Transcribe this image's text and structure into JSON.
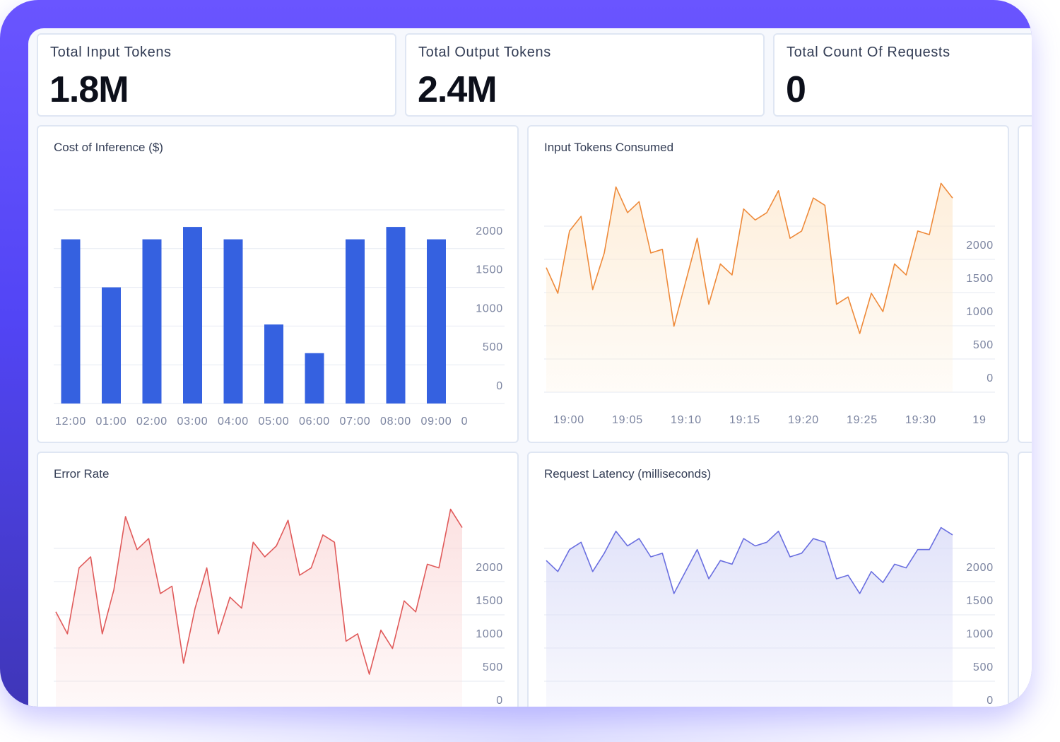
{
  "stats": [
    {
      "label": "Total Input Tokens",
      "value": "1.8M"
    },
    {
      "label": "Total Output Tokens",
      "value": "2.4M"
    },
    {
      "label": "Total Count Of Requests",
      "value": "0"
    }
  ],
  "colors": {
    "frame": "#5b4cff",
    "bar": "#3561e0",
    "orange": "#ee8a3a",
    "red": "#e05a5a",
    "purple": "#6a6fe0",
    "grid": "#e6eaf2",
    "tick": "#7b84a0"
  },
  "chart_data": [
    {
      "type": "bar",
      "title": "Cost of Inference ($)",
      "categories": [
        "12:00",
        "01:00",
        "02:00",
        "03:00",
        "04:00",
        "05:00",
        "06:00",
        "07:00",
        "08:00",
        "09:00"
      ],
      "values": [
        2120,
        1500,
        2120,
        2280,
        2120,
        1020,
        650,
        2120,
        2280,
        2120
      ],
      "x_tick_labels": [
        "12:00",
        "01:00",
        "02:00",
        "03:00",
        "04:00",
        "05:00",
        "06:00",
        "07:00",
        "08:00",
        "09:00",
        "0"
      ],
      "y_ticks": [
        0,
        500,
        1000,
        1500,
        2000
      ],
      "ylim": [
        0,
        2500
      ],
      "y_axis_side": "right",
      "grid": true
    },
    {
      "type": "area",
      "title": "Input Tokens Consumed",
      "x_tick_labels": [
        "19:00",
        "19:05",
        "19:10",
        "19:15",
        "19:20",
        "19:25",
        "19:30",
        "19"
      ],
      "x": [
        0,
        1,
        2,
        3,
        4,
        5,
        6,
        7,
        8,
        9,
        10,
        11,
        12,
        13,
        14,
        15,
        16,
        17,
        18,
        19,
        20,
        21,
        22,
        23,
        24,
        25,
        26,
        27,
        28,
        29,
        30,
        31,
        32,
        33,
        34,
        35
      ],
      "values": [
        1700,
        1350,
        2200,
        2400,
        1400,
        1900,
        2800,
        2450,
        2600,
        1900,
        1950,
        900,
        1500,
        2100,
        1200,
        1750,
        1600,
        2500,
        2350,
        2450,
        2750,
        2100,
        2200,
        2650,
        2550,
        1200,
        1300,
        800,
        1350,
        1100,
        1750,
        1600,
        2200,
        2150,
        2850,
        2650
      ],
      "y_ticks": [
        0,
        500,
        1000,
        1500,
        2000
      ],
      "ylim": [
        0,
        2700
      ],
      "y_axis_side": "right",
      "grid": true
    },
    {
      "type": "area",
      "title": "Error Rate",
      "x": [
        0,
        1,
        2,
        3,
        4,
        5,
        6,
        7,
        8,
        9,
        10,
        11,
        12,
        13,
        14,
        15,
        16,
        17,
        18,
        19,
        20,
        21,
        22,
        23,
        24,
        25,
        26,
        27,
        28,
        29,
        30,
        31,
        32,
        33,
        34,
        35
      ],
      "values": [
        1400,
        1100,
        2000,
        2150,
        1100,
        1700,
        2700,
        2250,
        2400,
        1650,
        1750,
        700,
        1450,
        2000,
        1100,
        1600,
        1450,
        2350,
        2150,
        2300,
        2650,
        1900,
        2000,
        2450,
        2350,
        1000,
        1100,
        550,
        1150,
        900,
        1550,
        1400,
        2050,
        2000,
        2800,
        2550
      ],
      "y_ticks": [
        0,
        500,
        1000,
        1500,
        2000
      ],
      "ylim": [
        0,
        2700
      ],
      "y_axis_side": "right",
      "grid": true
    },
    {
      "type": "area",
      "title": "Request Latency (milliseconds)",
      "x": [
        0,
        1,
        2,
        3,
        4,
        5,
        6,
        7,
        8,
        9,
        10,
        11,
        12,
        13,
        14,
        15,
        16,
        17,
        18,
        19,
        20,
        21,
        22,
        23,
        24,
        25,
        26,
        27,
        28,
        29,
        30,
        31,
        32,
        33,
        34,
        35
      ],
      "values": [
        2100,
        1950,
        2250,
        2350,
        1950,
        2200,
        2500,
        2300,
        2400,
        2150,
        2200,
        1650,
        1950,
        2250,
        1850,
        2100,
        2050,
        2400,
        2300,
        2350,
        2500,
        2150,
        2200,
        2400,
        2350,
        1850,
        1900,
        1650,
        1950,
        1800,
        2050,
        2000,
        2250,
        2250,
        2550,
        2450
      ],
      "y_ticks": [
        0,
        500,
        1000,
        1500,
        2000
      ],
      "ylim": [
        0,
        2700
      ],
      "y_axis_side": "right",
      "grid": true
    }
  ]
}
